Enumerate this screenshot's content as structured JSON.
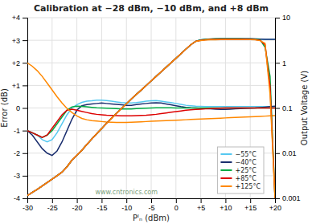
{
  "chart_data": {
    "type": "line",
    "title": "Calibration at −28 dBm, −10 dBm, and +8 dBm",
    "xlabel": "Pᴵₙ (dBm)",
    "ylabel": "Error (dB)",
    "y2label": "Output Voltage (V)",
    "x": [
      -30,
      -29,
      -28,
      -27,
      -26,
      -25,
      -24,
      -23,
      -22,
      -21,
      -20,
      -19,
      -18,
      -17,
      -16,
      -15,
      -14,
      -13,
      -12,
      -11,
      -10,
      -9,
      -8,
      -7,
      -6,
      -5,
      -4,
      -3,
      -2,
      -1,
      0,
      1,
      2,
      3,
      4,
      5,
      6,
      7,
      8,
      9,
      10,
      11,
      12,
      13,
      14,
      15,
      16,
      17,
      18,
      19,
      20
    ],
    "xlim": [
      -30,
      20
    ],
    "xticks": [
      -30,
      -25,
      -20,
      -15,
      -10,
      -5,
      0,
      {
        "value": 5,
        "label": "+5"
      },
      {
        "value": 10,
        "label": "+10"
      },
      {
        "value": 15,
        "label": "+15"
      },
      {
        "value": 20,
        "label": "+20"
      }
    ],
    "ylim": [
      -4,
      4
    ],
    "yticks": [
      -4,
      -3,
      -2,
      -1,
      0,
      {
        "value": 1,
        "label": "+1"
      },
      {
        "value": 2,
        "label": "+2"
      },
      {
        "value": 3,
        "label": "+3"
      },
      {
        "value": 4,
        "label": "+4"
      }
    ],
    "y2lim": [
      0.001,
      10
    ],
    "y2ticks": [
      0.001,
      0.01,
      0.1,
      1,
      10
    ],
    "log": "y2",
    "grid": true,
    "legend": "lower right",
    "annotations": [
      "www.cntronics.com"
    ],
    "series": [
      {
        "name": "−55°C",
        "color": "#55c8f0",
        "axis": "y",
        "values": [
          -1.0,
          -1.1,
          -1.2,
          -1.4,
          -1.5,
          -1.4,
          -1.1,
          -0.7,
          -0.3,
          0.0,
          0.15,
          0.25,
          0.3,
          0.32,
          0.35,
          0.35,
          0.33,
          0.3,
          0.27,
          0.24,
          0.22,
          0.22,
          0.24,
          0.27,
          0.3,
          0.32,
          0.33,
          0.3,
          0.27,
          0.24,
          0.2,
          0.16,
          0.12,
          0.1,
          0.08,
          0.07,
          0.06,
          0.06,
          0.06,
          0.06,
          0.06,
          0.06,
          0.06,
          0.06,
          0.06,
          0.06,
          0.06,
          0.06,
          0.06,
          0.06,
          0.06
        ]
      },
      {
        "name": "−40°C",
        "color": "#1a2e6e",
        "axis": "y",
        "values": [
          -1.0,
          -1.2,
          -1.5,
          -1.8,
          -2.0,
          -2.1,
          -1.9,
          -1.5,
          -1.0,
          -0.5,
          -0.1,
          0.1,
          0.15,
          0.18,
          0.2,
          0.22,
          0.2,
          0.18,
          0.16,
          0.14,
          0.12,
          0.12,
          0.15,
          0.18,
          0.2,
          0.22,
          0.23,
          0.22,
          0.18,
          0.14,
          0.1,
          0.06,
          0.03,
          0.01,
          0.0,
          -0.02,
          -0.03,
          -0.04,
          -0.05,
          -0.06,
          -0.06,
          -0.05,
          -0.04,
          -0.03,
          -0.02,
          -0.01,
          0.0,
          0.02,
          0.04,
          0.06,
          0.08
        ]
      },
      {
        "name": "+25°C",
        "color": "#00aa44",
        "axis": "y",
        "values": [
          -1.0,
          -1.1,
          -1.2,
          -1.3,
          -1.2,
          -1.0,
          -0.7,
          -0.4,
          -0.1,
          0.05,
          0.08,
          0.07,
          0.05,
          0.03,
          0.01,
          0.0,
          -0.01,
          -0.02,
          -0.03,
          -0.04,
          -0.04,
          -0.04,
          -0.03,
          -0.02,
          -0.01,
          0.0,
          0.01,
          0.01,
          0.01,
          0.01,
          0.0,
          0.0,
          0.0,
          0.0,
          0.0,
          0.0,
          0.0,
          0.0,
          0.0,
          0.0,
          0.0,
          0.0,
          0.0,
          0.0,
          0.0,
          0.0,
          0.0,
          0.0,
          0.0,
          0.0,
          0.0
        ]
      },
      {
        "name": "+85°C",
        "color": "#dd0000",
        "axis": "y",
        "values": [
          -1.0,
          -1.1,
          -1.2,
          -1.3,
          -1.2,
          -0.9,
          -0.6,
          -0.3,
          -0.1,
          -0.05,
          -0.1,
          -0.15,
          -0.2,
          -0.25,
          -0.28,
          -0.3,
          -0.32,
          -0.33,
          -0.34,
          -0.35,
          -0.35,
          -0.35,
          -0.34,
          -0.33,
          -0.32,
          -0.3,
          -0.28,
          -0.25,
          -0.22,
          -0.19,
          -0.16,
          -0.13,
          -0.1,
          -0.08,
          -0.06,
          -0.05,
          -0.04,
          -0.03,
          -0.02,
          -0.01,
          0.0,
          0.0,
          0.0,
          0.0,
          0.0,
          0.0,
          0.0,
          0.0,
          0.0,
          0.0,
          0.0
        ]
      },
      {
        "name": "+125°C",
        "color": "#ff8800",
        "axis": "y",
        "values": [
          2.0,
          1.85,
          1.65,
          1.4,
          1.1,
          0.8,
          0.5,
          0.22,
          -0.02,
          -0.2,
          -0.35,
          -0.46,
          -0.52,
          -0.56,
          -0.58,
          -0.6,
          -0.62,
          -0.63,
          -0.64,
          -0.64,
          -0.64,
          -0.63,
          -0.62,
          -0.61,
          -0.6,
          -0.59,
          -0.58,
          -0.57,
          -0.56,
          -0.55,
          -0.54,
          -0.53,
          -0.52,
          -0.51,
          -0.5,
          -0.49,
          -0.48,
          -0.47,
          -0.46,
          -0.45,
          -0.44,
          -0.43,
          -0.42,
          -0.41,
          -0.4,
          -0.39,
          -0.38,
          -0.37,
          -0.36,
          -0.35,
          -0.34
        ]
      },
      {
        "color": "#55c8f0",
        "axis": "y2",
        "values": [
          0.00115,
          0.00135,
          0.00158,
          0.00188,
          0.00224,
          0.00266,
          0.00316,
          0.0038,
          0.005,
          0.007,
          0.009,
          0.0115,
          0.0155,
          0.0205,
          0.027,
          0.035,
          0.046,
          0.059,
          0.076,
          0.097,
          0.124,
          0.158,
          0.2,
          0.25,
          0.315,
          0.398,
          0.501,
          0.63,
          0.794,
          1.0,
          1.26,
          1.585,
          2.0,
          2.512,
          3.0,
          3.2,
          3.3,
          3.35,
          3.38,
          3.4,
          3.4,
          3.4,
          3.4,
          3.4,
          3.4,
          3.4,
          3.38,
          3.35,
          3.3,
          3.3,
          3.3
        ]
      },
      {
        "color": "#1a2e6e",
        "axis": "y2",
        "values": [
          0.00115,
          0.00135,
          0.00158,
          0.00188,
          0.00224,
          0.00266,
          0.00316,
          0.0038,
          0.005,
          0.007,
          0.009,
          0.0115,
          0.0155,
          0.0205,
          0.027,
          0.035,
          0.046,
          0.059,
          0.076,
          0.097,
          0.124,
          0.158,
          0.2,
          0.25,
          0.315,
          0.398,
          0.501,
          0.63,
          0.794,
          1.0,
          1.26,
          1.585,
          2.0,
          2.512,
          3.0,
          3.2,
          3.3,
          3.35,
          3.38,
          3.4,
          3.4,
          3.4,
          3.4,
          3.4,
          3.4,
          3.4,
          3.38,
          3.35,
          3.3,
          3.3,
          3.3
        ]
      },
      {
        "color": "#00aa44",
        "axis": "y2",
        "values": [
          0.00115,
          0.00135,
          0.00158,
          0.00188,
          0.00224,
          0.00266,
          0.00316,
          0.0038,
          0.005,
          0.007,
          0.009,
          0.0115,
          0.0155,
          0.0205,
          0.027,
          0.035,
          0.046,
          0.059,
          0.076,
          0.097,
          0.124,
          0.158,
          0.2,
          0.25,
          0.315,
          0.398,
          0.501,
          0.63,
          0.794,
          1.0,
          1.26,
          1.585,
          2.0,
          2.512,
          3.0,
          3.2,
          3.3,
          3.38,
          3.4,
          3.42,
          3.42,
          3.42,
          3.41,
          3.4,
          3.39,
          3.38,
          3.35,
          3.25,
          2.2,
          0.5,
          0.001
        ]
      },
      {
        "color": "#dd0000",
        "axis": "y2",
        "values": [
          0.00115,
          0.00135,
          0.00158,
          0.00188,
          0.00224,
          0.00266,
          0.00316,
          0.0038,
          0.005,
          0.007,
          0.009,
          0.0115,
          0.0155,
          0.0205,
          0.027,
          0.035,
          0.046,
          0.059,
          0.076,
          0.097,
          0.124,
          0.158,
          0.2,
          0.25,
          0.315,
          0.398,
          0.501,
          0.63,
          0.794,
          1.0,
          1.26,
          1.585,
          2.0,
          2.512,
          3.0,
          3.15,
          3.25,
          3.3,
          3.32,
          3.33,
          3.33,
          3.33,
          3.33,
          3.33,
          3.33,
          3.32,
          3.28,
          3.15,
          2.5,
          0.3,
          0.001
        ]
      },
      {
        "color": "#ff8800",
        "axis": "y2",
        "values": [
          0.00115,
          0.00135,
          0.00158,
          0.00188,
          0.00224,
          0.00266,
          0.00316,
          0.0038,
          0.005,
          0.007,
          0.009,
          0.0115,
          0.0155,
          0.0205,
          0.027,
          0.035,
          0.046,
          0.059,
          0.076,
          0.097,
          0.124,
          0.158,
          0.2,
          0.25,
          0.315,
          0.398,
          0.501,
          0.63,
          0.794,
          1.0,
          1.26,
          1.585,
          2.0,
          2.512,
          3.0,
          3.1,
          3.2,
          3.24,
          3.26,
          3.27,
          3.27,
          3.27,
          3.27,
          3.27,
          3.27,
          3.27,
          3.23,
          3.1,
          2.7,
          0.2,
          0.001
        ]
      }
    ]
  }
}
